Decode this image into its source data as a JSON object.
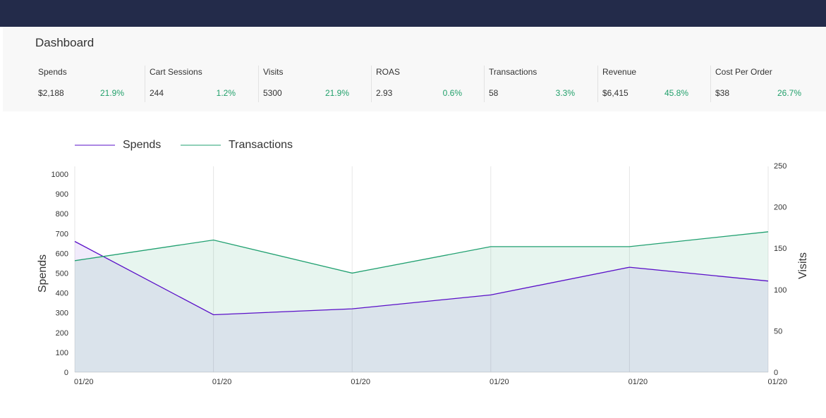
{
  "header": {
    "title": "Dashboard"
  },
  "metrics": [
    {
      "label": "Spends",
      "value": "$2,188",
      "change": "21.9%"
    },
    {
      "label": "Cart Sessions",
      "value": "244",
      "change": "1.2%"
    },
    {
      "label": "Visits",
      "value": "5300",
      "change": "21.9%"
    },
    {
      "label": "ROAS",
      "value": "2.93",
      "change": "0.6%"
    },
    {
      "label": "Transactions",
      "value": "58",
      "change": "3.3%"
    },
    {
      "label": "Revenue",
      "value": "$6,415",
      "change": "45.8%"
    },
    {
      "label": "Cost Per Order",
      "value": "$38",
      "change": "26.7%"
    }
  ],
  "colors": {
    "positive": "#22a06b",
    "spends": "#5a0fc8",
    "transactions": "#20a070",
    "header_bg": "#232b4a"
  },
  "chart_data": {
    "type": "area",
    "categories": [
      "01/20",
      "01/20",
      "01/20",
      "01/20",
      "01/20",
      "01/20"
    ],
    "series": [
      {
        "name": "Spends",
        "axis": "left",
        "values": [
          660,
          290,
          320,
          390,
          530,
          460
        ]
      },
      {
        "name": "Transactions",
        "axis": "right",
        "values": [
          135,
          160,
          120,
          152,
          152,
          170
        ]
      }
    ],
    "ylabel": "Spends",
    "ylabel_right": "Visits",
    "ylim": [
      0,
      1000
    ],
    "ylim_right": [
      0,
      250
    ],
    "yticks": [
      0,
      100,
      200,
      300,
      400,
      500,
      600,
      700,
      800,
      900,
      1000
    ],
    "yticks_right": [
      0,
      50,
      100,
      150,
      200,
      250
    ],
    "grid": true,
    "legend": "top-left"
  }
}
